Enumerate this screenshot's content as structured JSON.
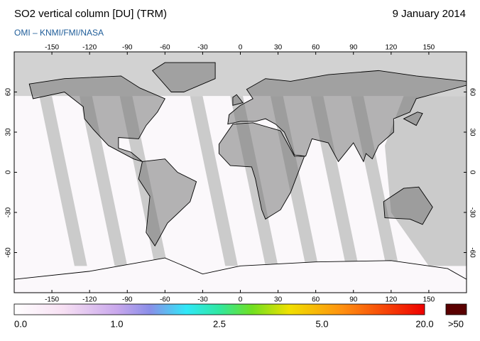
{
  "header": {
    "title": "SO2 vertical column [DU] (TRM)",
    "date": "9 January 2014",
    "source": "OMI  –  KNMI/FMI/NASA"
  },
  "map": {
    "lon_ticks": [
      -150,
      -120,
      -90,
      -60,
      -30,
      0,
      30,
      60,
      90,
      120,
      150
    ],
    "lat_ticks": [
      60,
      30,
      0,
      -30,
      -60
    ],
    "lon_range": [
      -180,
      180
    ],
    "lat_range": [
      -90,
      90
    ]
  },
  "colorbar": {
    "labels": [
      "0.0",
      "1.0",
      "2.5",
      "5.0",
      "20.0"
    ],
    "overflow_label": ">50"
  }
}
